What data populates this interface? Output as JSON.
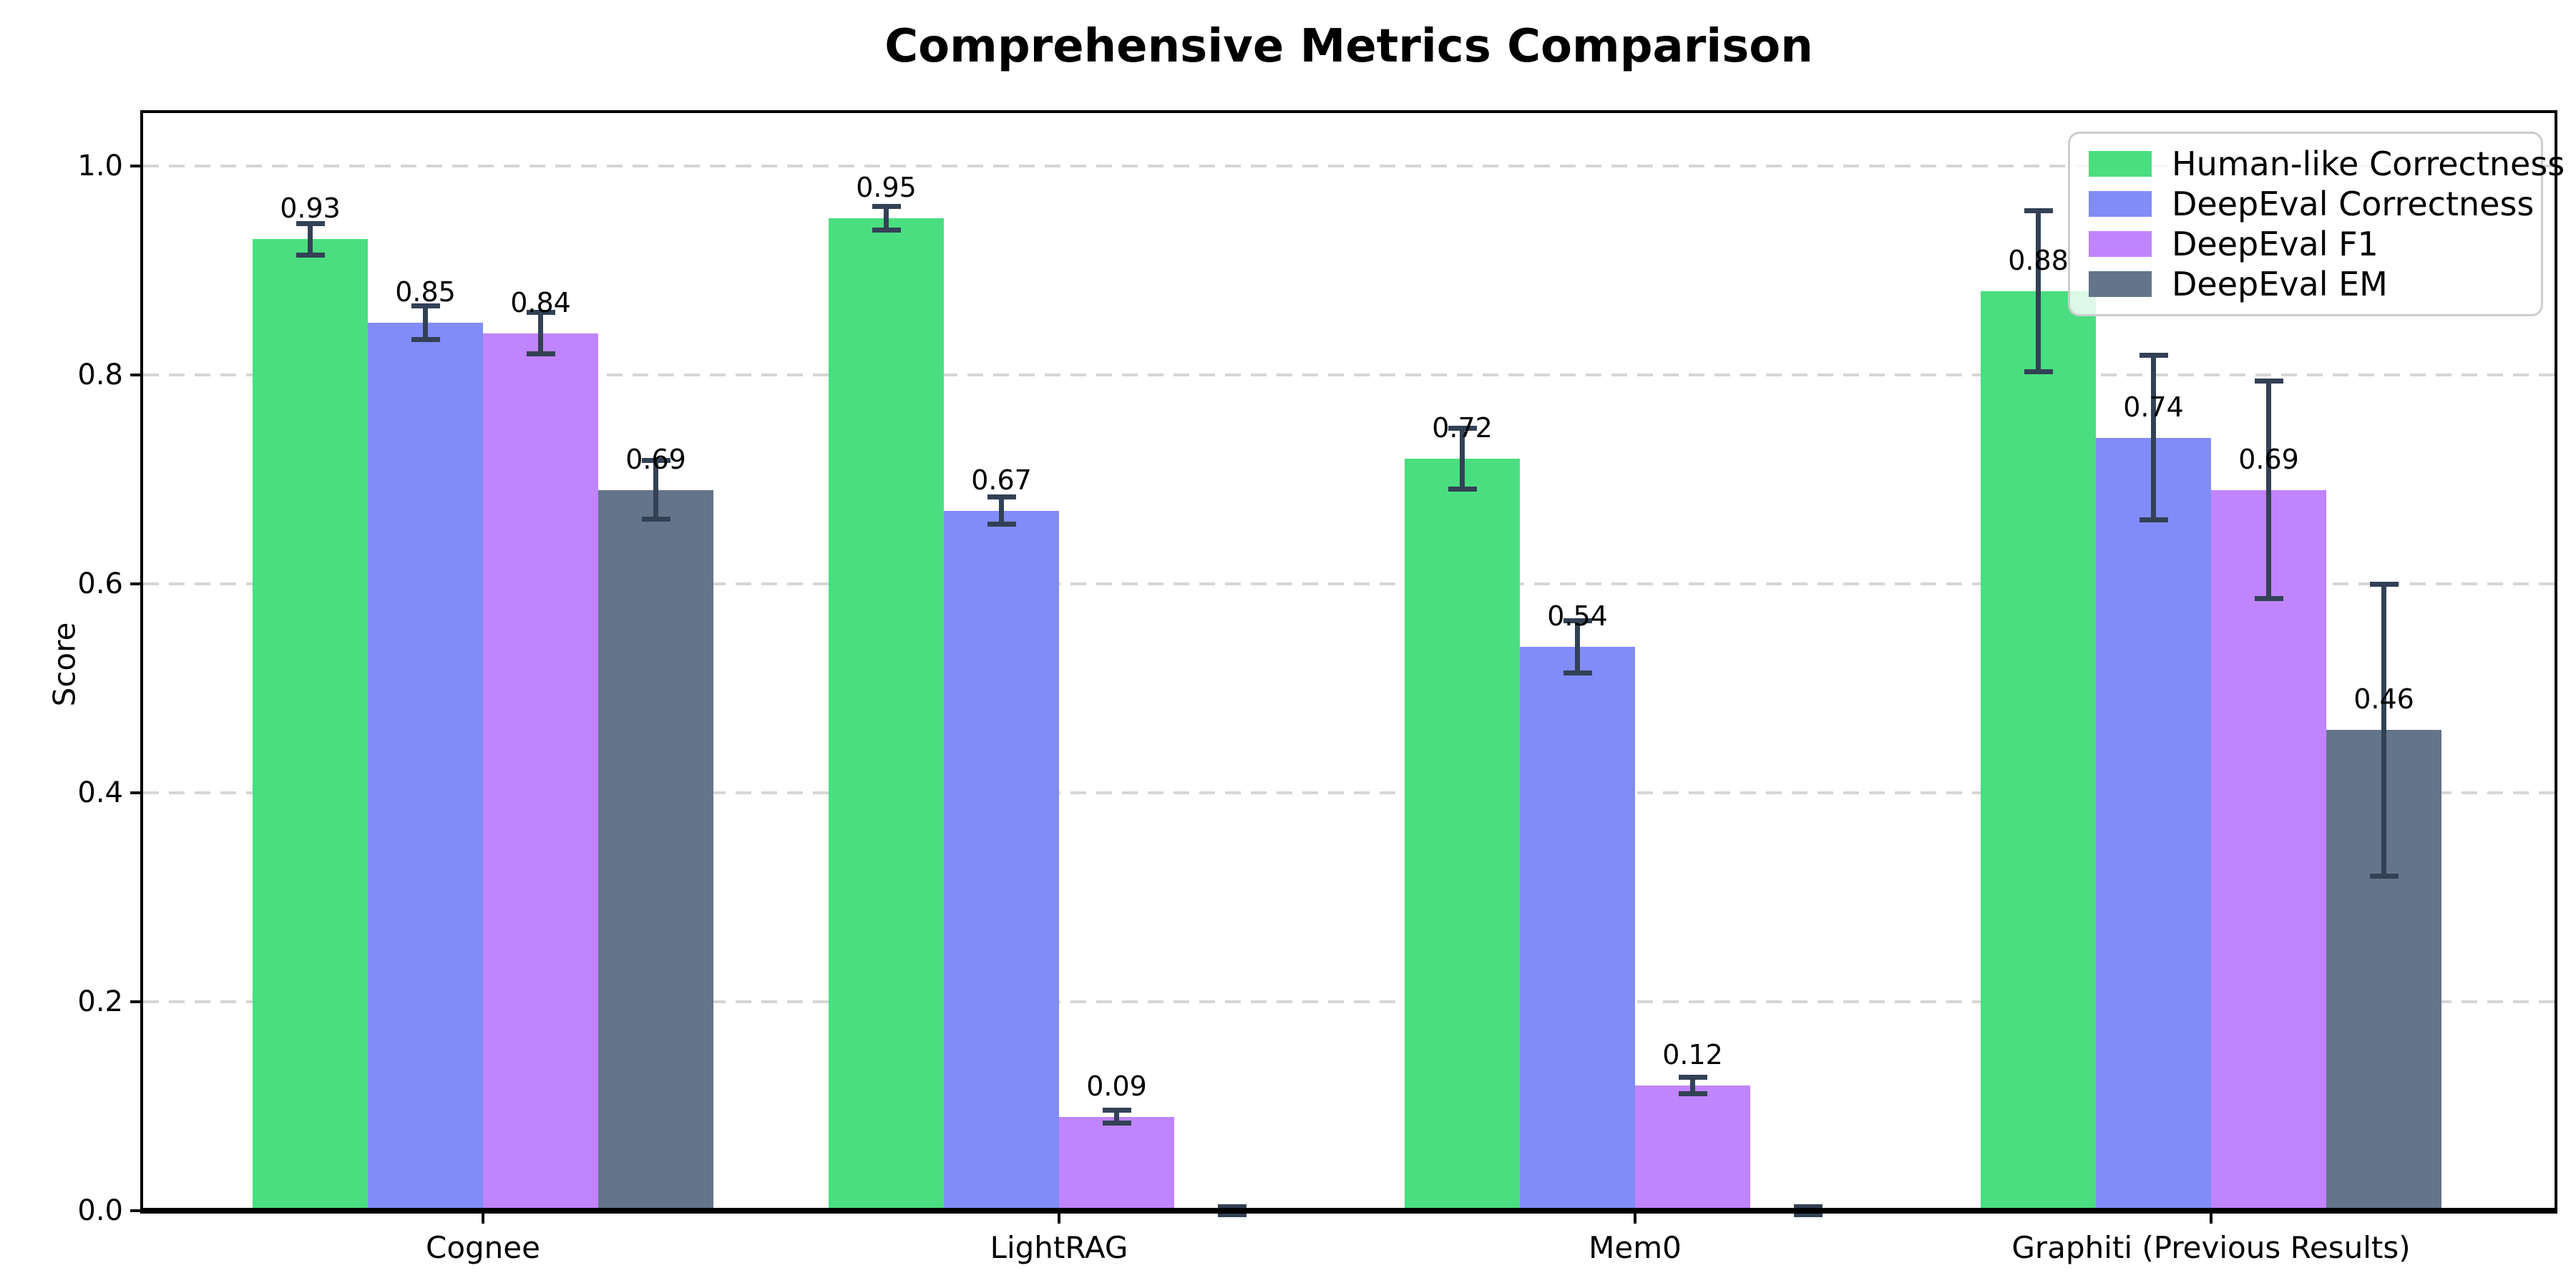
{
  "chart_data": {
    "type": "bar",
    "title": "Comprehensive Metrics Comparison",
    "ylabel": "Score",
    "xlabel": "",
    "categories": [
      "Cognee",
      "LightRAG",
      "Mem0",
      "Graphiti (Previous Results)"
    ],
    "series": [
      {
        "name": "Human-like Correctness",
        "color": "#4ade80",
        "values": [
          0.93,
          0.95,
          0.72,
          0.88
        ],
        "errors": [
          0.015,
          0.011,
          0.029,
          0.077
        ]
      },
      {
        "name": "DeepEval Correctness",
        "color": "#818cf8",
        "values": [
          0.85,
          0.67,
          0.54,
          0.74
        ],
        "errors": [
          0.016,
          0.013,
          0.025,
          0.079
        ]
      },
      {
        "name": "DeepEval F1",
        "color": "#c084fc",
        "values": [
          0.84,
          0.09,
          0.12,
          0.69
        ],
        "errors": [
          0.02,
          0.006,
          0.008,
          0.104
        ]
      },
      {
        "name": "DeepEval EM",
        "color": "#64748b",
        "values": [
          0.69,
          0.0,
          0.0,
          0.46
        ],
        "errors": [
          0.028,
          0.004,
          0.004,
          0.14
        ]
      }
    ],
    "yticks": [
      "0.0",
      "0.2",
      "0.4",
      "0.6",
      "0.8",
      "1.0"
    ],
    "ylim": [
      0,
      1.05
    ],
    "grid": true,
    "grid_color": "#d6d6d6",
    "error_bar_color": "#334155",
    "legend_position": "upper right",
    "value_label_decimals": 2,
    "value_label_min": 0.005
  }
}
